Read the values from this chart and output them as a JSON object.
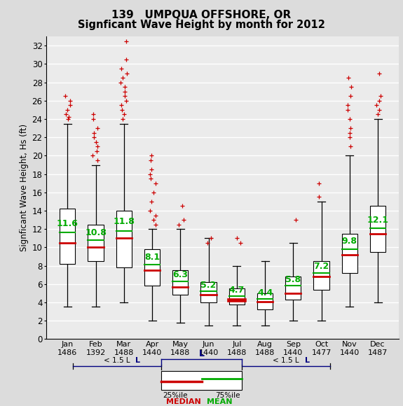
{
  "title_line1": "139   UMPQUA OFFSHORE, OR",
  "title_line2": "Signficant Wave Height by month for 2012",
  "ylabel": "Signficant Wave Height, Hs (ft)",
  "months": [
    "Jan",
    "Feb",
    "Mar",
    "Apr",
    "May",
    "Jun",
    "Jul",
    "Aug",
    "Sep",
    "Oct",
    "Nov",
    "Dec"
  ],
  "counts": [
    1486,
    1392,
    1488,
    1440,
    1488,
    1440,
    1488,
    1488,
    1440,
    1477,
    1440,
    1487
  ],
  "means": [
    11.6,
    10.8,
    11.8,
    8.1,
    6.3,
    5.2,
    4.7,
    4.4,
    5.8,
    7.2,
    9.8,
    12.1
  ],
  "q1": [
    8.2,
    8.5,
    7.8,
    5.8,
    4.8,
    4.0,
    3.8,
    3.2,
    4.3,
    5.4,
    7.2,
    9.5
  ],
  "median": [
    10.5,
    10.0,
    11.0,
    7.5,
    5.7,
    4.8,
    4.2,
    4.1,
    5.0,
    6.8,
    9.2,
    11.5
  ],
  "q3": [
    14.2,
    12.5,
    14.0,
    9.8,
    7.5,
    6.2,
    5.5,
    5.0,
    6.8,
    8.5,
    11.5,
    14.5
  ],
  "whisker_low": [
    3.5,
    3.5,
    4.0,
    2.0,
    1.8,
    1.5,
    1.5,
    1.5,
    2.0,
    2.0,
    3.5,
    4.0
  ],
  "whisker_high": [
    23.5,
    19.0,
    23.5,
    12.0,
    12.0,
    11.0,
    8.0,
    8.5,
    10.5,
    15.0,
    20.0,
    24.0
  ],
  "outlier_groups": {
    "Jan": [
      24.0,
      24.2,
      24.5,
      25.0,
      25.5,
      26.0,
      26.5
    ],
    "Feb": [
      19.5,
      20.0,
      20.5,
      21.0,
      21.5,
      22.0,
      22.5,
      23.0,
      24.0,
      24.5
    ],
    "Mar": [
      24.0,
      24.5,
      25.0,
      25.5,
      26.0,
      26.5,
      27.0,
      27.5,
      28.0,
      28.5,
      29.0,
      29.5,
      30.5,
      32.5
    ],
    "Apr": [
      12.5,
      13.0,
      13.5,
      14.0,
      15.0,
      16.0,
      17.0,
      17.5,
      18.0,
      18.5,
      19.5,
      20.0
    ],
    "May": [
      12.5,
      13.0,
      14.5
    ],
    "Jun": [
      10.5,
      11.0
    ],
    "Jul": [
      10.5,
      11.0
    ],
    "Aug": [],
    "Sep": [
      13.0
    ],
    "Oct": [
      15.5,
      17.0
    ],
    "Nov": [
      21.0,
      22.0,
      22.5,
      23.0,
      24.0,
      25.0,
      25.5,
      26.5,
      27.5,
      28.5
    ],
    "Dec": [
      24.5,
      25.0,
      25.5,
      26.0,
      26.5,
      29.0
    ]
  },
  "jul_mean_line": true,
  "ylim": [
    0,
    33
  ],
  "yticks": [
    0,
    2,
    4,
    6,
    8,
    10,
    12,
    14,
    16,
    18,
    20,
    22,
    24,
    26,
    28,
    30,
    32
  ],
  "box_color": "white",
  "median_color": "#cc0000",
  "mean_color": "#00aa00",
  "outlier_color": "#cc0000",
  "whisker_color": "black",
  "box_edge_color": "black",
  "bg_color": "#dcdcdc",
  "plot_bg_color": "#ebebeb",
  "grid_color": "white",
  "mean_fontsize": 9,
  "title_fontsize": 11,
  "box_width": 0.55
}
